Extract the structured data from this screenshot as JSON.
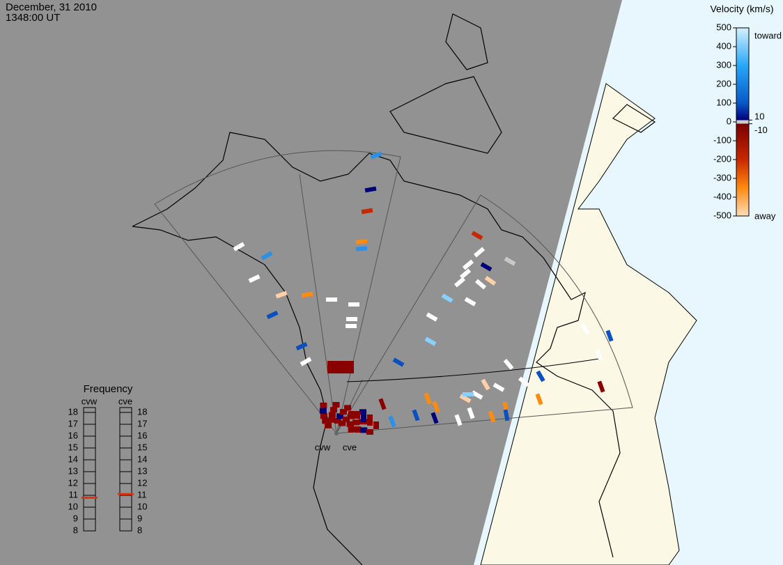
{
  "header": {
    "date": "December, 31 2010",
    "time": "1348:00 UT"
  },
  "velocity_scale": {
    "title": "Velocity (km/s)",
    "ylim": [
      500,
      -500
    ],
    "ticks": [
      500,
      400,
      300,
      200,
      100,
      0,
      -100,
      -200,
      -300,
      -400,
      -500
    ],
    "inner_ticks": [
      10,
      -10
    ],
    "toward": "toward",
    "away": "away"
  },
  "frequency": {
    "title": "Frequency",
    "ylim": [
      18,
      8
    ],
    "ticks": [
      18,
      17,
      16,
      15,
      14,
      13,
      12,
      11,
      10,
      9,
      8
    ],
    "radars": [
      {
        "name": "cvw",
        "value": 10.8
      },
      {
        "name": "cve",
        "value": 11.1
      }
    ]
  },
  "radar_labels": [
    "cvw",
    "cve"
  ]
}
